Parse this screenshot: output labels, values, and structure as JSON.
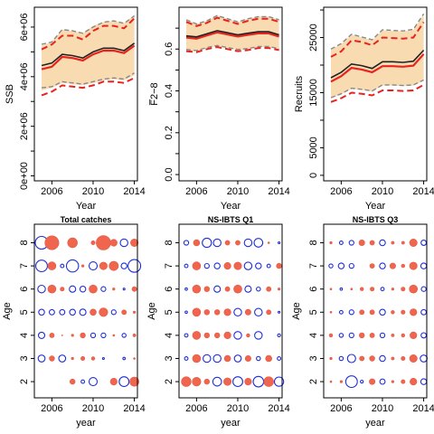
{
  "chart_data": [
    {
      "type": "line",
      "title": "",
      "xlabel": "Year",
      "ylabel": "SSB",
      "xlim": [
        2004.3,
        2014.3
      ],
      "ylim": [
        -200000,
        6800000
      ],
      "xticks": [
        2006,
        2010,
        2014
      ],
      "yticks": [
        0,
        2000000,
        4000000,
        6000000
      ],
      "ytick_labels": [
        "0e+00",
        "2e+06",
        "4e+06",
        "6e+06"
      ],
      "minor_yticks": [
        1000000,
        3000000,
        5000000
      ],
      "y_label_rotation": "vertical",
      "x": [
        2005,
        2006,
        2007,
        2008,
        2009,
        2010,
        2011,
        2012,
        2013,
        2014
      ],
      "band": {
        "lower": [
          3450000,
          3550000,
          3750000,
          3700000,
          3650000,
          3750000,
          3850000,
          3900000,
          3850000,
          4050000
        ],
        "upper": [
          5250000,
          5400000,
          5900000,
          5850000,
          5750000,
          6050000,
          6200000,
          6250000,
          6150000,
          6500000
        ]
      },
      "series": [
        {
          "role": "estimate",
          "values": [
            4300000,
            4400000,
            4800000,
            4750000,
            4650000,
            4900000,
            5050000,
            5050000,
            4950000,
            5250000
          ]
        },
        {
          "role": "estimate",
          "values": [
            4450000,
            4550000,
            4900000,
            4850000,
            4750000,
            5000000,
            5150000,
            5150000,
            5050000,
            5350000
          ]
        },
        {
          "role": "upper",
          "values": [
            5100000,
            5300000,
            5650000,
            5650000,
            5500000,
            5850000,
            6050000,
            6050000,
            5950000,
            6350000
          ]
        },
        {
          "role": "lower",
          "values": [
            3250000,
            3400000,
            3650000,
            3600000,
            3550000,
            3650000,
            3800000,
            3800000,
            3750000,
            3950000
          ]
        },
        {
          "role": "interval",
          "values": [
            5300000,
            5400000,
            5900000,
            5850000,
            5750000,
            6000000,
            6200000,
            6250000,
            6150000,
            6450000
          ]
        },
        {
          "role": "interval",
          "values": [
            3550000,
            3600000,
            3800000,
            3750000,
            3700000,
            3800000,
            3900000,
            3950000,
            3900000,
            4150000
          ]
        }
      ]
    },
    {
      "type": "line",
      "title": "",
      "xlabel": "Year",
      "ylabel": "F̅2−8",
      "xlim": [
        2004.3,
        2014.3
      ],
      "ylim": [
        -0.03,
        0.8
      ],
      "xticks": [
        2006,
        2010,
        2014
      ],
      "yticks": [
        0.0,
        0.2,
        0.4,
        0.6
      ],
      "ytick_labels": [
        "0.0",
        "0.2",
        "0.4",
        "0.6"
      ],
      "minor_yticks": [
        0.1,
        0.3,
        0.5,
        0.7
      ],
      "y_label_rotation": "vertical",
      "x": [
        2005,
        2006,
        2007,
        2008,
        2009,
        2010,
        2011,
        2012,
        2013,
        2014
      ],
      "band": {
        "lower": [
          0.595,
          0.59,
          0.605,
          0.615,
          0.605,
          0.595,
          0.6,
          0.61,
          0.61,
          0.6
        ],
        "upper": [
          0.74,
          0.72,
          0.735,
          0.76,
          0.745,
          0.73,
          0.745,
          0.755,
          0.755,
          0.74
        ]
      },
      "series": [
        {
          "role": "estimate",
          "values": [
            0.655,
            0.65,
            0.665,
            0.68,
            0.67,
            0.66,
            0.668,
            0.675,
            0.675,
            0.66
          ]
        },
        {
          "role": "estimate",
          "values": [
            0.663,
            0.658,
            0.673,
            0.688,
            0.678,
            0.668,
            0.676,
            0.683,
            0.683,
            0.668
          ]
        },
        {
          "role": "upper",
          "values": [
            0.73,
            0.71,
            0.725,
            0.75,
            0.735,
            0.72,
            0.735,
            0.745,
            0.745,
            0.73
          ]
        },
        {
          "role": "lower",
          "values": [
            0.59,
            0.585,
            0.6,
            0.61,
            0.6,
            0.59,
            0.595,
            0.605,
            0.605,
            0.595
          ]
        },
        {
          "role": "interval",
          "values": [
            0.74,
            0.72,
            0.735,
            0.76,
            0.745,
            0.73,
            0.745,
            0.755,
            0.755,
            0.74
          ]
        },
        {
          "role": "interval",
          "values": [
            0.598,
            0.593,
            0.607,
            0.617,
            0.607,
            0.598,
            0.603,
            0.612,
            0.612,
            0.602
          ]
        }
      ]
    },
    {
      "type": "line",
      "title": "",
      "xlabel": "Year",
      "ylabel": "Recruits",
      "xlim": [
        2004.3,
        2014.3
      ],
      "ylim": [
        -1000,
        30500
      ],
      "xticks": [
        2006,
        2010,
        2014
      ],
      "yticks": [
        0,
        5000,
        15000,
        25000
      ],
      "ytick_labels": [
        "0",
        "5000",
        "15000",
        "25000"
      ],
      "minor_yticks": [
        10000,
        20000,
        30000
      ],
      "y_label_rotation": "vertical",
      "x": [
        2005,
        2006,
        2007,
        2008,
        2009,
        2010,
        2011,
        2012,
        2013,
        2014
      ],
      "band": {
        "lower": [
          14000,
          14700,
          15700,
          15500,
          15200,
          16300,
          16300,
          16200,
          16300,
          17200
        ],
        "upper": [
          22800,
          23800,
          25500,
          25000,
          24500,
          26300,
          26200,
          26100,
          26400,
          29200
        ]
      },
      "series": [
        {
          "role": "estimate",
          "values": [
            17000,
            18000,
            19500,
            19200,
            18700,
            19800,
            19800,
            19700,
            19900,
            22000
          ]
        },
        {
          "role": "estimate",
          "values": [
            17700,
            18700,
            20200,
            19900,
            19400,
            20600,
            20600,
            20500,
            20700,
            22700
          ]
        },
        {
          "role": "upper",
          "values": [
            21500,
            22500,
            24500,
            24200,
            23600,
            25000,
            24900,
            24800,
            25000,
            27800
          ]
        },
        {
          "role": "lower",
          "values": [
            13300,
            14000,
            15000,
            14800,
            14500,
            15400,
            15400,
            15300,
            15400,
            16400
          ]
        },
        {
          "role": "interval",
          "values": [
            22900,
            23900,
            25600,
            25100,
            24600,
            26400,
            26300,
            26200,
            26500,
            29300
          ]
        },
        {
          "role": "interval",
          "values": [
            14100,
            14800,
            15800,
            15600,
            15300,
            16400,
            16400,
            16300,
            16400,
            17300
          ]
        }
      ]
    },
    {
      "type": "scatter",
      "title": "Total catches",
      "xlabel": "year",
      "ylabel": "Age",
      "xlim": [
        2004.3,
        2014.3
      ],
      "ylim": [
        1.3,
        8.8
      ],
      "xticks": [
        2006,
        2010,
        2014
      ],
      "yticks": [
        2,
        3,
        4,
        5,
        6,
        7,
        8
      ],
      "encoding": "bubble size = |residual|; filled red = positive, open blue = negative",
      "x": [
        2005,
        2006,
        2007,
        2008,
        2009,
        2010,
        2011,
        2012,
        2013,
        2014
      ],
      "ages": [
        8,
        7,
        6,
        5,
        4,
        3,
        2
      ],
      "residuals": [
        [
          -2.2,
          2.4,
          0,
          1.7,
          0,
          0.7,
          2.5,
          1.2,
          -1.3,
          1.3
        ],
        [
          -2.0,
          1.4,
          -0.6,
          -2.1,
          0.4,
          -1.4,
          1.3,
          1.6,
          -1.0,
          -2.2
        ],
        [
          -1.3,
          1.4,
          0.7,
          -1.1,
          -1.0,
          1.4,
          -0.8,
          0.4,
          -0.3,
          0.8
        ],
        [
          -1.0,
          -0.9,
          -0.9,
          -1.0,
          -1.1,
          1.1,
          1.5,
          -0.8,
          0.8,
          0.4
        ],
        [
          -1.1,
          0.8,
          0.2,
          0.4,
          0.9,
          -0.8,
          -0.8,
          0.3,
          -0.7,
          0.5
        ],
        [
          -1.2,
          0.9,
          -1.2,
          0.4,
          0.7,
          0.6,
          -0.3,
          0,
          -0.4,
          0.3
        ],
        [
          0,
          0,
          0,
          0.9,
          -0.6,
          -1.4,
          0,
          1.2,
          -1.7,
          1.6
        ]
      ]
    },
    {
      "type": "scatter",
      "title": "NS-IBTS Q1",
      "xlabel": "year",
      "ylabel": "Age",
      "xlim": [
        2004.3,
        2014.3
      ],
      "ylim": [
        1.3,
        8.8
      ],
      "xticks": [
        2006,
        2010,
        2014
      ],
      "yticks": [
        2,
        3,
        4,
        5,
        6,
        7,
        8
      ],
      "encoding": "bubble size = |residual|; filled red = positive, open blue = negative",
      "x": [
        2005,
        2006,
        2007,
        2008,
        2009,
        2010,
        2011,
        2012,
        2013,
        2014
      ],
      "ages": [
        8,
        7,
        6,
        5,
        4,
        3,
        2
      ],
      "residuals": [
        [
          -0.8,
          1.1,
          -1.6,
          -1.3,
          0.8,
          0.8,
          -1.3,
          -1.5,
          0.3,
          -0.3
        ],
        [
          -0.6,
          1.4,
          -0.8,
          -1.0,
          1.2,
          1.3,
          -1.3,
          -1.0,
          -0.6,
          0.9
        ],
        [
          -0.4,
          1.4,
          0.9,
          -1.1,
          0.8,
          1.4,
          -1.1,
          -0.7,
          0.8,
          0.4
        ],
        [
          -0.4,
          1.4,
          0.9,
          0.9,
          1.2,
          -1.3,
          1.0,
          -1.3,
          0.8,
          -0.3
        ],
        [
          -0.6,
          1.4,
          0.9,
          0.9,
          1.2,
          -1.3,
          0.6,
          -1.3,
          0,
          -0.5
        ],
        [
          -0.6,
          1.4,
          -1.3,
          -1.3,
          1.1,
          -1.2,
          1.0,
          -0.7,
          1.1,
          -0.6
        ],
        [
          1.7,
          1.5,
          0.9,
          -1.5,
          1.3,
          -1.7,
          1.2,
          -1.8,
          1.7,
          -1.6
        ]
      ]
    },
    {
      "type": "scatter",
      "title": "NS-IBTS Q3",
      "xlabel": "year",
      "ylabel": "Age",
      "xlim": [
        2004.3,
        2014.3
      ],
      "ylim": [
        1.3,
        8.8
      ],
      "xticks": [
        2006,
        2010,
        2014
      ],
      "yticks": [
        2,
        3,
        4,
        5,
        6,
        7,
        8
      ],
      "encoding": "bubble size = |residual|; filled red = positive, open blue = negative",
      "x": [
        2005,
        2006,
        2007,
        2008,
        2009,
        2010,
        2011,
        2012,
        2013,
        2014
      ],
      "ages": [
        8,
        7,
        6,
        5,
        4,
        3,
        2
      ],
      "residuals": [
        [
          0.4,
          -0.6,
          -0.8,
          1.0,
          0.8,
          -1.0,
          0.5,
          0.5,
          1.3,
          -0.9
        ],
        [
          -0.7,
          -1.0,
          -0.8,
          0,
          0.8,
          -1.0,
          1.0,
          0.6,
          1.3,
          -1.0
        ],
        [
          0.3,
          -0.4,
          0.3,
          0.6,
          0.7,
          -0.6,
          0.4,
          0.7,
          1.4,
          -0.8
        ],
        [
          0.3,
          -0.6,
          -0.8,
          0.8,
          0.8,
          -1.0,
          0.6,
          0.7,
          1.2,
          -0.9
        ],
        [
          0.6,
          -0.7,
          -0.8,
          0.9,
          0.8,
          -0.8,
          0.5,
          0.6,
          1.2,
          -0.9
        ],
        [
          0.4,
          -0.7,
          -1.4,
          0.8,
          0.9,
          -1.0,
          0.5,
          0.7,
          1.3,
          -1.2
        ],
        [
          0.3,
          0.4,
          -2.0,
          -0.5,
          1.0,
          -0.9,
          0.4,
          0.7,
          1.2,
          -1.0
        ]
      ]
    }
  ]
}
